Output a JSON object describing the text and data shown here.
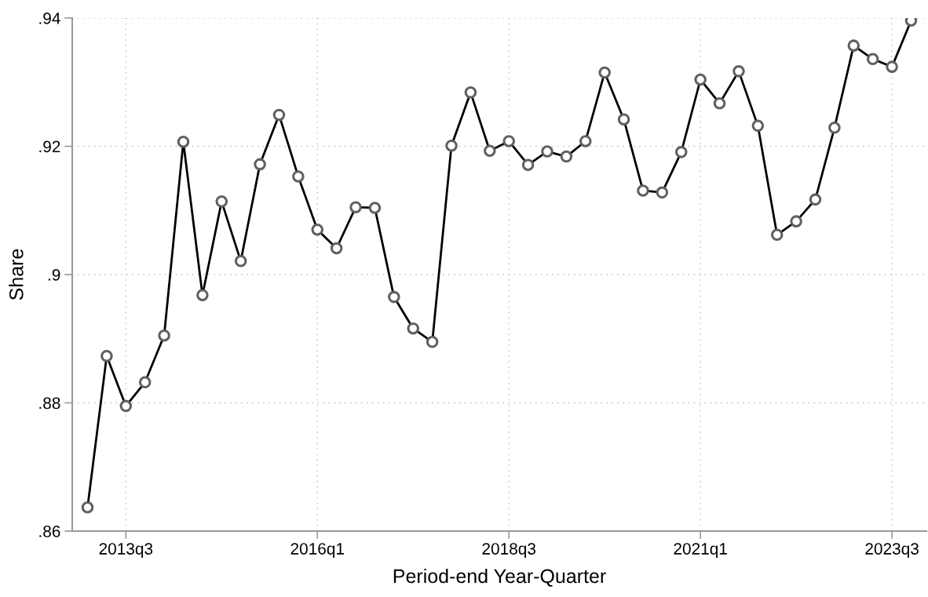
{
  "chart_data": {
    "type": "line",
    "xlabel": "Period-end Year-Quarter",
    "ylabel": "Share",
    "categories": [
      null,
      null,
      "2013q3",
      null,
      null,
      null,
      null,
      null,
      null,
      null,
      null,
      null,
      "2016q1",
      null,
      null,
      null,
      null,
      null,
      null,
      null,
      null,
      null,
      "2018q3",
      null,
      null,
      null,
      null,
      null,
      null,
      null,
      null,
      null,
      "2021q1",
      null,
      null,
      null,
      null,
      null,
      null,
      null,
      null,
      null,
      "2023q3",
      null
    ],
    "series": [
      {
        "color": "#000000",
        "values": [
          0.8637,
          0.8873,
          0.8795,
          0.8832,
          0.8905,
          0.9207,
          0.8968,
          0.9114,
          0.9021,
          0.9172,
          0.9249,
          0.9153,
          0.907,
          0.9041,
          0.9105,
          0.9104,
          0.8965,
          0.8916,
          0.8895,
          0.9201,
          0.9284,
          0.9193,
          0.9208,
          0.9171,
          0.9192,
          0.9184,
          0.9208,
          0.9315,
          0.9242,
          0.9131,
          0.9128,
          0.9191,
          0.9304,
          0.9267,
          0.9317,
          0.9232,
          0.9062,
          0.9083,
          0.9117,
          0.9229,
          0.9357,
          0.9336,
          0.9324,
          0.9396
        ]
      }
    ],
    "ylim": [
      0.86,
      0.94
    ],
    "yticks": [
      {
        "value": 0.86,
        "label": ".86"
      },
      {
        "value": 0.88,
        "label": ".88"
      },
      {
        "value": 0.9,
        "label": ".9"
      },
      {
        "value": 0.92,
        "label": ".92"
      },
      {
        "value": 0.94,
        "label": ".94"
      }
    ],
    "grid": true,
    "marker": "circle",
    "line_style": "solid"
  }
}
